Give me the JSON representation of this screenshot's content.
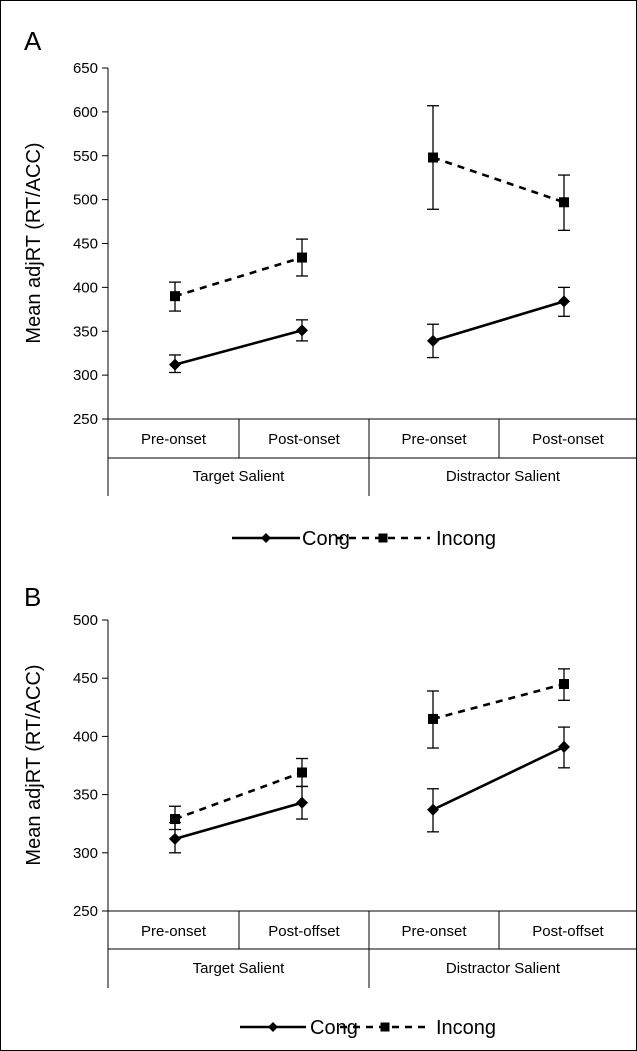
{
  "chart_data": [
    {
      "type": "line",
      "panel_label": "A",
      "ylabel": "Mean adjRT (RT/ACC)",
      "ylim": [
        250,
        650
      ],
      "yticks": [
        250,
        300,
        350,
        400,
        450,
        500,
        550,
        600,
        650
      ],
      "categories": [
        "Pre-onset",
        "Post-onset",
        "Pre-onset",
        "Post-onset"
      ],
      "groups": [
        {
          "label": "Target Salient",
          "categories": [
            "Pre-onset",
            "Post-onset"
          ]
        },
        {
          "label": "Distractor Salient",
          "categories": [
            "Pre-onset",
            "Post-onset"
          ]
        }
      ],
      "series": [
        {
          "name": "Cong",
          "marker": "diamond",
          "line": "solid",
          "values": [
            312,
            351,
            339,
            384
          ],
          "error": [
            [
              303,
              323
            ],
            [
              339,
              363
            ],
            [
              320,
              358
            ],
            [
              367,
              400
            ]
          ]
        },
        {
          "name": "Incong",
          "marker": "square",
          "line": "dashed",
          "values": [
            390,
            434,
            548,
            497
          ],
          "error": [
            [
              373,
              406
            ],
            [
              413,
              455
            ],
            [
              489,
              607
            ],
            [
              465,
              528
            ]
          ]
        }
      ],
      "legend": "bottom",
      "grid": false
    },
    {
      "type": "line",
      "panel_label": "B",
      "ylabel": "Mean adjRT (RT/ACC)",
      "ylim": [
        250,
        500
      ],
      "yticks": [
        250,
        300,
        350,
        400,
        450,
        500
      ],
      "categories": [
        "Pre-onset",
        "Post-offset",
        "Pre-onset",
        "Post-offset"
      ],
      "groups": [
        {
          "label": "Target Salient",
          "categories": [
            "Pre-onset",
            "Post-offset"
          ]
        },
        {
          "label": "Distractor Salient",
          "categories": [
            "Pre-onset",
            "Post-offset"
          ]
        }
      ],
      "series": [
        {
          "name": "Cong",
          "marker": "diamond",
          "line": "solid",
          "values": [
            312,
            343,
            337,
            391
          ],
          "error": [
            [
              300,
              326
            ],
            [
              329,
              357
            ],
            [
              318,
              355
            ],
            [
              373,
              408
            ]
          ]
        },
        {
          "name": "Incong",
          "marker": "square",
          "line": "dashed",
          "values": [
            329,
            369,
            415,
            445
          ],
          "error": [
            [
              320,
              340
            ],
            [
              357,
              381
            ],
            [
              390,
              439
            ],
            [
              431,
              458
            ]
          ]
        }
      ],
      "legend": "bottom",
      "grid": false
    }
  ]
}
